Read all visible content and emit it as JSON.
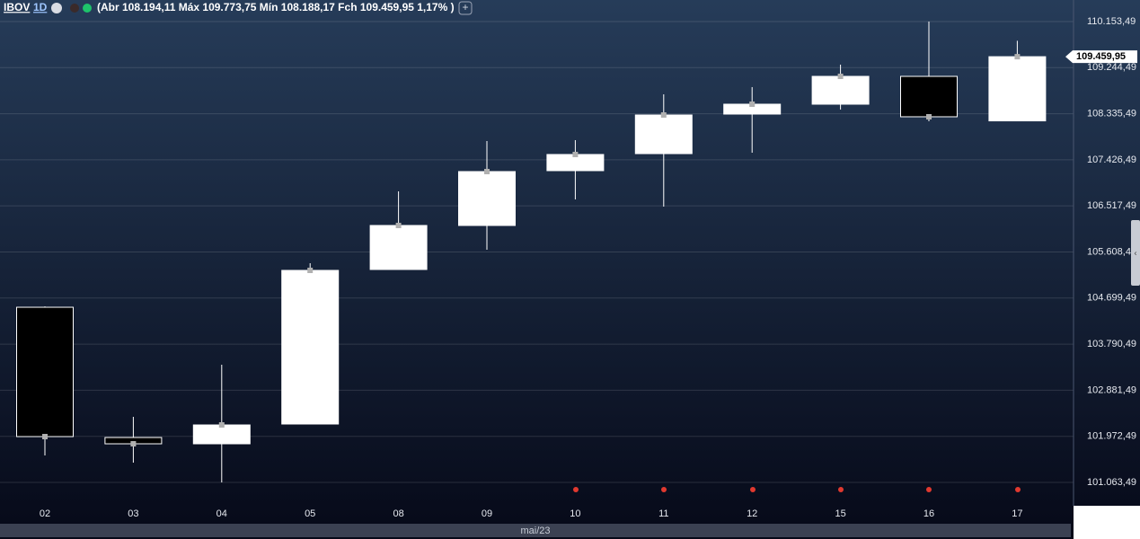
{
  "header": {
    "symbol": "IBOV",
    "interval": "1D",
    "quote": "(Abr 108.194,11 Máx 109.773,75 Mín 108.188,17 Fch 109.459,95 1,17% )"
  },
  "chart_data": {
    "type": "candlestick",
    "categories": [
      "02",
      "03",
      "04",
      "05",
      "08",
      "09",
      "10",
      "11",
      "12",
      "15",
      "16",
      "17"
    ],
    "open": [
      104518,
      101949,
      101825,
      102215,
      105263,
      106131,
      107212,
      107548,
      108328,
      108523,
      109072,
      108194.11
    ],
    "high": [
      104535,
      102357,
      103385,
      105387,
      106804,
      107797,
      107814,
      108718,
      108860,
      109303,
      110153,
      109773.75
    ],
    "low": [
      101595,
      101453,
      101063,
      102215,
      105263,
      105653,
      106645,
      106503,
      107566,
      108417,
      108186,
      108188.17
    ],
    "close": [
      101967,
      101825,
      102197,
      105245,
      106131,
      107194,
      107531,
      108310,
      108523,
      109072,
      108275,
      109459.95
    ],
    "up_color": "#ffffff",
    "down_color": "#000000",
    "wick_color": "#ffffff",
    "close_marker_color": "#b0b0b0",
    "x_axis_label": "mai/23",
    "ylim": [
      100656,
      110578
    ],
    "yticks": [
      {
        "value": 101063.49,
        "label": "101.063,49"
      },
      {
        "value": 101972.49,
        "label": "101.972,49"
      },
      {
        "value": 102881.49,
        "label": "102.881,49"
      },
      {
        "value": 103790.49,
        "label": "103.790,49"
      },
      {
        "value": 104699.49,
        "label": "104.699,49"
      },
      {
        "value": 105608.49,
        "label": "105.608,49"
      },
      {
        "value": 106517.49,
        "label": "106.517,49"
      },
      {
        "value": 107426.49,
        "label": "107.426,49"
      },
      {
        "value": 108335.49,
        "label": "108.335,49"
      },
      {
        "value": 109244.49,
        "label": "109.244,49"
      },
      {
        "value": 110153.49,
        "label": "110.153,49"
      }
    ],
    "last_price": {
      "value": 109459.95,
      "label": "109.459,95"
    },
    "grid": true
  }
}
